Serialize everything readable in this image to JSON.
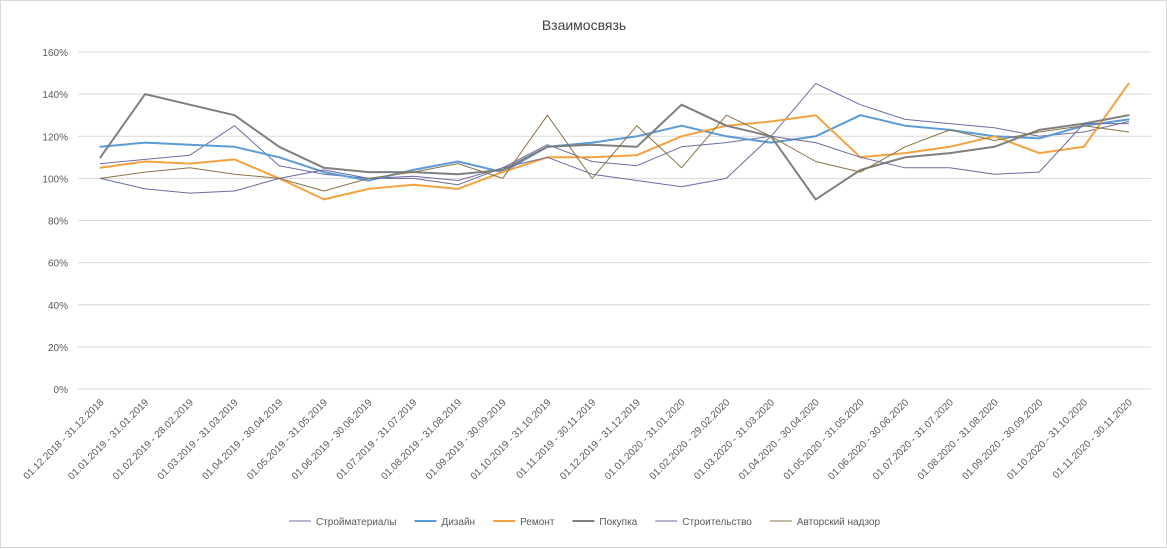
{
  "chart_data": {
    "type": "line",
    "title": "Взаимосвязь",
    "xlabel": "",
    "ylabel": "",
    "ylim": [
      0,
      160
    ],
    "ytick_labels": [
      "0%",
      "20%",
      "40%",
      "60%",
      "80%",
      "100%",
      "120%",
      "140%",
      "160%"
    ],
    "grid": true,
    "legend_position": "bottom",
    "categories": [
      "01.12.2018 - 31.12.2018",
      "01.01.2019 - 31.01.2019",
      "01.02.2019 - 28.02.2019",
      "01.03.2019 - 31.03.2019",
      "01.04.2019 - 30.04.2019",
      "01.05.2019 - 31.05.2019",
      "01.06.2019 - 30.06.2019",
      "01.07.2019 - 31.07.2019",
      "01.08.2019 - 31.08.2019",
      "01.09.2019 - 30.09.2019",
      "01.10.2019 - 31.10.2019",
      "01.11.2019 - 30.11.2019",
      "01.12.2019 - 31.12.2019",
      "01.01.2020 - 31.01.2020",
      "01.02.2020 - 29.02.2020",
      "01.03.2020 - 31.03.2020",
      "01.04.2020 - 30.04.2020",
      "01.05.2020 - 31.05.2020",
      "01.06.2020 - 30.06.2020",
      "01.07.2020 - 31.07.2020",
      "01.08.2020 - 31.08.2020",
      "01.09.2020 - 30.09.2020",
      "01.10.2020 - 31.10.2020",
      "01.11.2020 - 30.11.2020"
    ],
    "series": [
      {
        "name": "Стройматериалы",
        "color": "#6e6ca3",
        "width": 1,
        "values": [
          107,
          109,
          111,
          125,
          106,
          102,
          100,
          101,
          99,
          105,
          116,
          108,
          106,
          115,
          117,
          120,
          145,
          135,
          128,
          126,
          124,
          120,
          122,
          127
        ]
      },
      {
        "name": "Дизайн",
        "color": "#5b9bd5",
        "width": 2,
        "values": [
          115,
          117,
          116,
          115,
          110,
          103,
          99,
          104,
          108,
          103,
          115,
          117,
          120,
          125,
          120,
          117,
          120,
          130,
          125,
          123,
          120,
          119,
          125,
          128
        ]
      },
      {
        "name": "Ремонт",
        "color": "#f4a23f",
        "width": 2,
        "values": [
          105,
          108,
          107,
          109,
          100,
          90,
          95,
          97,
          95,
          103,
          110,
          110,
          111,
          120,
          125,
          127,
          130,
          110,
          112,
          115,
          120,
          112,
          115,
          145
        ]
      },
      {
        "name": "Покупка",
        "color": "#7f7f7f",
        "width": 2,
        "values": [
          110,
          140,
          135,
          130,
          115,
          105,
          103,
          103,
          102,
          104,
          115,
          116,
          115,
          135,
          125,
          120,
          90,
          104,
          110,
          112,
          115,
          123,
          126,
          130
        ]
      },
      {
        "name": "Строительство",
        "color": "#6a6aa0",
        "width": 1,
        "values": [
          100,
          95,
          93,
          94,
          100,
          104,
          100,
          100,
          97,
          105,
          110,
          102,
          99,
          96,
          100,
          120,
          117,
          110,
          105,
          105,
          102,
          103,
          126,
          126
        ]
      },
      {
        "name": "Авторский надзор",
        "color": "#8a7345",
        "width": 1,
        "values": [
          100,
          103,
          105,
          102,
          100,
          94,
          100,
          103,
          107,
          100,
          130,
          100,
          125,
          105,
          130,
          120,
          108,
          103,
          115,
          123,
          118,
          122,
          125,
          122
        ]
      }
    ]
  }
}
